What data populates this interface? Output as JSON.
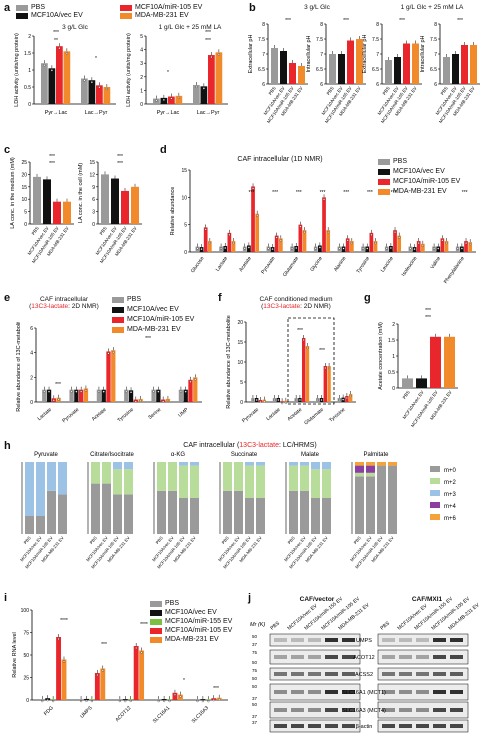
{
  "colors": {
    "pbs": "#9a9a9a",
    "vec": "#111111",
    "mir105": "#e8262b",
    "mda": "#f08a2a",
    "m0": "#9a9a9a",
    "m2": "#b8dc9a",
    "m3": "#9cc3e6",
    "m4": "#8b3fa0",
    "m6": "#f4a33a"
  },
  "panel_labels": {
    "a": "a",
    "b": "b",
    "c": "c",
    "d": "d",
    "e": "e",
    "f": "f",
    "g": "g",
    "h": "h",
    "i": "i",
    "j": "j"
  },
  "legend_main": {
    "pbs": "PBS",
    "vec": "MCF10A/vec EV",
    "mir105": "MCF10A/miR-105 EV",
    "mda": "MDA-MB-231 EV"
  },
  "legend_i": {
    "pbs": "PBS",
    "vec": "MCF10A/vec EV",
    "mir": "MCF10A/miR-155 EV",
    "mir105": "MCF10A/miR-105 EV",
    "mda": "MDA-MB-231 EV"
  },
  "legend_h": [
    "m+0",
    "m+2",
    "m+3",
    "m+4",
    "m+6"
  ],
  "a": {
    "title1": "3 g/L Glc",
    "title2": "1 g/L Glc + 25 mM LA",
    "ylabel": "LDH activity (units/mg protein)",
    "ylabel2": "LDH activity (units/mg protein)",
    "cats1": [
      "Pyr→Lac",
      "Lac→Pyr"
    ],
    "cats2": [
      "Pyr→Lac",
      "Lac→Pyr"
    ]
  },
  "b": {
    "title1": "3 g/L Glc",
    "title2": "1 g/L Glc + 25 mM LA",
    "yl1": "Extracellular pH",
    "yl2": "Intracellular pH"
  },
  "c": {
    "yl1": "LA conc. in the medium (mM)",
    "yl2": "LA conc. in the cell (mM)"
  },
  "d": {
    "title": "CAF intracellular (1D NMR)",
    "ylabel": "Relative abundance",
    "cats": [
      "Glucose",
      "Lactate",
      "Acetate",
      "Pyruvate",
      "Glutamate",
      "Glycine",
      "Alanine",
      "Tyrosine",
      "Leucine",
      "Isoleucine",
      "Valine",
      "Phenylalanine"
    ]
  },
  "e": {
    "title_a": "CAF intracellular",
    "title_b": "(",
    "title_iso": "13C3-lactate",
    "title_c": ": 2D NMR)",
    "ylabel": "Relative abundance of 13C-metabolite",
    "cats": [
      "Lactate",
      "Pyruvate",
      "Acetate",
      "Tyrosine",
      "Serine",
      "UMP"
    ]
  },
  "f": {
    "title_a": "CAF conditioned medium",
    "title_b": "(",
    "title_iso": "13C3-lactate",
    "title_c": ": 2D NMR)",
    "ylabel": "Relative abundance of 13C-metabolite",
    "cats": [
      "Pyruvate",
      "Lactate",
      "Acetate",
      "Glutamate",
      "Tyrosine"
    ]
  },
  "g": {
    "ylabel": "Acetate concentration (mM)"
  },
  "h": {
    "title_a": "CAF intracellular (",
    "title_iso": "13C3-lactate",
    "title_c": ": LC/HRMS)",
    "metabolites": [
      "Pyruvate",
      "Citrate/Isocitrate",
      "α-KG",
      "Succinate",
      "Malate",
      "Palmitate"
    ]
  },
  "i": {
    "ylabel": "Relative RNA level",
    "cats": [
      "PDG",
      "UMPS",
      "ACOT12",
      "SLC16A1",
      "SLC16A3"
    ]
  },
  "j": {
    "group1": "CAF/vector",
    "group2": "CAF/MXI1",
    "mw": "Mr (K)",
    "lanes": [
      "PBS",
      "MCF10A/vec EV",
      "MCF10A/miR-155 EV",
      "MCF10A/miR-105 EV",
      "MDA-MB-231 EV"
    ],
    "bands": [
      "UMPS",
      "ACOT12",
      "ACSS2",
      "SLC16A1 (MCT1)",
      "SLC16A3 (MCT4)",
      "β-actin"
    ]
  },
  "chart_data": [
    {
      "id": "a1",
      "type": "bar",
      "title": "3 g/L Glc",
      "categories": [
        "Pyr→Lac",
        "Lac→Pyr"
      ],
      "series": [
        {
          "name": "PBS",
          "values": [
            1.2,
            0.75
          ]
        },
        {
          "name": "MCF10A/vec EV",
          "values": [
            1.05,
            0.7
          ]
        },
        {
          "name": "MCF10A/miR-105 EV",
          "values": [
            1.7,
            0.55
          ]
        },
        {
          "name": "MDA-MB-231 EV",
          "values": [
            1.55,
            0.5
          ]
        }
      ],
      "ylim": [
        0,
        2
      ]
    },
    {
      "id": "a2",
      "type": "bar",
      "title": "1 g/L Glc + 25 mM LA",
      "categories": [
        "Pyr→Lac",
        "Lac→Pyr"
      ],
      "series": [
        {
          "name": "PBS",
          "values": [
            0.4,
            1.4
          ]
        },
        {
          "name": "MCF10A/vec EV",
          "values": [
            0.45,
            1.3
          ]
        },
        {
          "name": "MCF10A/miR-105 EV",
          "values": [
            0.55,
            3.6
          ]
        },
        {
          "name": "MDA-MB-231 EV",
          "values": [
            0.6,
            3.8
          ]
        }
      ],
      "ylim": [
        0,
        5
      ]
    },
    {
      "id": "d",
      "type": "bar",
      "title": "CAF intracellular (1D NMR)",
      "categories": [
        "Glucose",
        "Lactate",
        "Acetate",
        "Pyruvate",
        "Glutamate",
        "Glycine",
        "Alanine",
        "Tyrosine",
        "Leucine",
        "Isoleucine",
        "Valine",
        "Phenylalanine"
      ],
      "series": [
        {
          "name": "PBS",
          "values": [
            1,
            1,
            1,
            1,
            1,
            1,
            1,
            1,
            1,
            1,
            1,
            1
          ]
        },
        {
          "name": "MCF10A/vec EV",
          "values": [
            0.9,
            1.1,
            1.2,
            0.9,
            1.1,
            1.2,
            1.0,
            1.0,
            1.1,
            0.9,
            1.0,
            1.0
          ]
        },
        {
          "name": "MCF10A/miR-105 EV",
          "values": [
            4.5,
            3.5,
            12,
            3,
            5,
            10,
            2.5,
            3.5,
            4,
            2,
            2.5,
            2
          ]
        },
        {
          "name": "MDA-MB-231 EV",
          "values": [
            2,
            2,
            7,
            2.5,
            4,
            4,
            2,
            2,
            3,
            1.5,
            2,
            1.8
          ]
        }
      ],
      "ylim": [
        0,
        15
      ]
    },
    {
      "id": "e",
      "type": "bar",
      "categories": [
        "Lactate",
        "Pyruvate",
        "Acetate",
        "Tyrosine",
        "Serine",
        "UMP"
      ],
      "series": [
        {
          "name": "PBS",
          "values": [
            1,
            1,
            1,
            1,
            1,
            1
          ]
        },
        {
          "name": "MCF10A/vec EV",
          "values": [
            1,
            1,
            1,
            0.95,
            1,
            1
          ]
        },
        {
          "name": "MCF10A/miR-105 EV",
          "values": [
            0.3,
            1,
            4.1,
            0.2,
            0.2,
            1.8
          ]
        },
        {
          "name": "MDA-MB-231 EV",
          "values": [
            0.35,
            1.1,
            4.2,
            0.25,
            0.25,
            2
          ]
        }
      ],
      "ylim": [
        0,
        6
      ]
    },
    {
      "id": "f",
      "type": "bar",
      "categories": [
        "Pyruvate",
        "Lactate",
        "Acetate",
        "Glutamate",
        "Tyrosine"
      ],
      "series": [
        {
          "name": "PBS",
          "values": [
            1,
            1,
            1,
            1,
            1
          ]
        },
        {
          "name": "MCF10A/vec EV",
          "values": [
            1,
            1,
            1,
            1,
            1.1
          ]
        },
        {
          "name": "MCF10A/miR-105 EV",
          "values": [
            0.5,
            0.2,
            16,
            9,
            1.5
          ]
        },
        {
          "name": "MDA-MB-231 EV",
          "values": [
            0.6,
            0.3,
            14,
            9,
            2
          ]
        }
      ],
      "ylim": [
        0,
        20
      ]
    },
    {
      "id": "g",
      "type": "bar",
      "categories": [
        "PBS",
        "MCF10A/vec EV",
        "MCF10A/miR-105 EV",
        "MDA-MB-231 EV"
      ],
      "values": [
        0.3,
        0.3,
        1.6,
        1.6
      ],
      "ylim": [
        0,
        2
      ]
    },
    {
      "id": "i",
      "type": "bar",
      "categories": [
        "PDG",
        "UMPS",
        "ACOT12",
        "SLC16A1",
        "SLC16A3"
      ],
      "series": [
        {
          "name": "PBS",
          "values": [
            1,
            1,
            1,
            1,
            1
          ]
        },
        {
          "name": "MCF10A/vec EV",
          "values": [
            2,
            1.2,
            1,
            1.1,
            1
          ]
        },
        {
          "name": "MCF10A/miR-155 EV",
          "values": [
            1,
            1,
            1.1,
            1,
            0.9
          ]
        },
        {
          "name": "MCF10A/miR-105 EV",
          "values": [
            70,
            30,
            60,
            8,
            2
          ]
        },
        {
          "name": "MDA-MB-231 EV",
          "values": [
            45,
            35,
            55,
            6,
            2.5
          ]
        }
      ],
      "ylim": [
        0,
        100
      ]
    }
  ]
}
